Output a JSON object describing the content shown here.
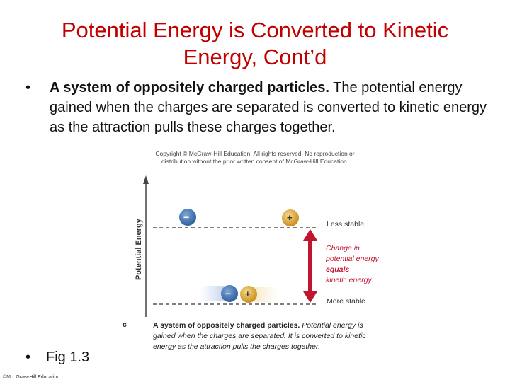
{
  "slide": {
    "title": "Potential Energy is Converted to Kinetic Energy, Cont’d",
    "bullet_char": "•",
    "bullet1_bold": "A system of oppositely charged particles.",
    "bullet1_rest": " The potential energy gained when the charges are separated is converted to kinetic energy as the attraction pulls these charges together.",
    "bullet2": "Fig 1.3",
    "footer": "©Mc. Graw-Hill Education."
  },
  "figure": {
    "copyright": "Copyright © McGraw-Hill Education. All rights reserved. No reproduction or distribution without the prior written consent of McGraw-Hill Education.",
    "y_axis_label": "Potential Energy",
    "less_stable": "Less stable",
    "more_stable": "More stable",
    "change_line1": "Change in",
    "change_line2": "potential energy",
    "change_line3": "equals",
    "change_line4": "kinetic energy.",
    "negative_sign": "−",
    "positive_sign": "+",
    "caption_letter": "c",
    "caption_bold": "A system of oppositely charged particles.",
    "caption_rest": " Potential energy is gained when the charges are separated. It is converted to kinetic energy as the attraction pulls the charges together.",
    "colors": {
      "negative": "#2f5f9e",
      "positive": "#d9a130",
      "arrow": "#c0152f",
      "title": "#c00000"
    }
  }
}
